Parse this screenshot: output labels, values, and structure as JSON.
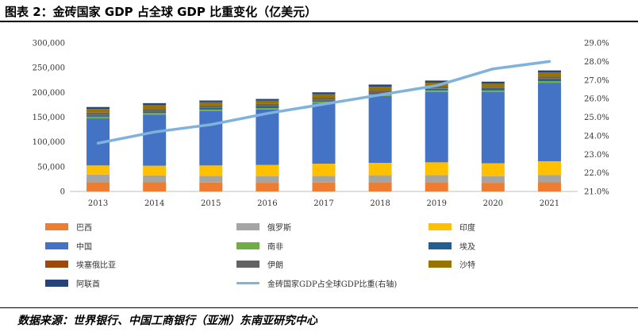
{
  "header": {
    "title": "图表 2：金砖国家 GDP 占全球 GDP 比重变化（亿美元）"
  },
  "footer": {
    "source": "数据来源：世界银行、中国工商银行（亚洲）东南亚研究中心"
  },
  "chart_data": {
    "type": "bar",
    "stacked": true,
    "categories": [
      "2013",
      "2014",
      "2015",
      "2016",
      "2017",
      "2018",
      "2019",
      "2020",
      "2021"
    ],
    "left_axis": {
      "min": 0,
      "max": 300000,
      "ticks": [
        "0",
        "50,000",
        "100,000",
        "150,000",
        "200,000",
        "250,000",
        "300,000"
      ]
    },
    "right_axis": {
      "min": 21.0,
      "max": 29.0,
      "ticks": [
        "21.0%",
        "22.0%",
        "23.0%",
        "24.0%",
        "25.0%",
        "26.0%",
        "27.0%",
        "28.0%",
        "29.0%"
      ]
    },
    "series": [
      {
        "name": "巴西",
        "color": "#ED7D31",
        "values": [
          19000,
          18500,
          18000,
          17500,
          18000,
          18700,
          18800,
          17500,
          18500
        ]
      },
      {
        "name": "俄罗斯",
        "color": "#A5A5A5",
        "values": [
          15000,
          14000,
          13500,
          13000,
          13500,
          14000,
          14000,
          13500,
          14500
        ]
      },
      {
        "name": "印度",
        "color": "#FFC000",
        "values": [
          18500,
          19500,
          21000,
          23000,
          24500,
          25000,
          26000,
          26000,
          28000
        ]
      },
      {
        "name": "中国",
        "color": "#4472C4",
        "values": [
          95000,
          103000,
          110000,
          112000,
          122000,
          135000,
          142000,
          144000,
          158000
        ]
      },
      {
        "name": "南非",
        "color": "#70AD47",
        "values": [
          3500,
          3500,
          3000,
          3000,
          3500,
          3500,
          3500,
          3000,
          4000
        ]
      },
      {
        "name": "埃及",
        "color": "#255E91",
        "values": [
          2800,
          3000,
          3200,
          3300,
          2500,
          2600,
          3000,
          3800,
          4200
        ]
      },
      {
        "name": "埃塞俄比亚",
        "color": "#9E480E",
        "values": [
          500,
          600,
          650,
          700,
          800,
          850,
          950,
          1000,
          1100
        ]
      },
      {
        "name": "伊朗",
        "color": "#636363",
        "values": [
          4800,
          4600,
          4000,
          4200,
          4500,
          4000,
          3500,
          2400,
          3600
        ]
      },
      {
        "name": "沙特",
        "color": "#997300",
        "values": [
          7500,
          7600,
          6700,
          6500,
          7000,
          8000,
          8000,
          7000,
          8300
        ]
      },
      {
        "name": "阿联酋",
        "color": "#264478",
        "values": [
          3900,
          4000,
          3600,
          3600,
          3900,
          4200,
          4200,
          3500,
          4200
        ]
      }
    ],
    "line_series": {
      "name": "金砖国家GDP占全球GDP比重(右轴)",
      "color": "#7FB2DD",
      "axis": "right",
      "values": [
        23.6,
        24.2,
        24.6,
        25.2,
        25.7,
        26.2,
        26.7,
        27.6,
        28.0
      ]
    },
    "legend_position": "bottom"
  }
}
